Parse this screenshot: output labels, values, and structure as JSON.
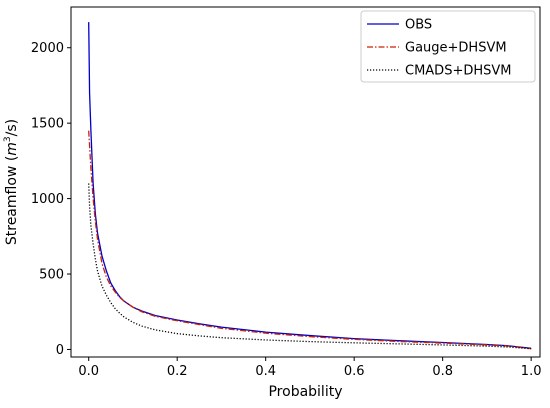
{
  "chart_data": {
    "type": "line",
    "title": "",
    "xlabel": "Probability",
    "ylabel": {
      "prefix": "Streamflow (",
      "unit_base": "m",
      "unit_exp": "3",
      "unit_rest": "/s)"
    },
    "xlim": [
      -0.04,
      1.02
    ],
    "ylim": [
      -50,
      2270
    ],
    "xticks": [
      0.0,
      0.2,
      0.4,
      0.6,
      0.8,
      1.0
    ],
    "xtick_labels": [
      "0.0",
      "0.2",
      "0.4",
      "0.6",
      "0.8",
      "1.0"
    ],
    "yticks": [
      0,
      500,
      1000,
      1500,
      2000
    ],
    "ytick_labels": [
      "0",
      "500",
      "1000",
      "1500",
      "2000"
    ],
    "grid": false,
    "legend_position": "top-right",
    "series": [
      {
        "name": "OBS",
        "color": "#0000cc",
        "dash": "solid",
        "x": [
          0.0,
          0.002,
          0.005,
          0.01,
          0.015,
          0.02,
          0.03,
          0.04,
          0.05,
          0.06,
          0.07,
          0.08,
          0.1,
          0.12,
          0.15,
          0.2,
          0.25,
          0.3,
          0.4,
          0.5,
          0.6,
          0.7,
          0.8,
          0.9,
          0.95,
          1.0
        ],
        "values": [
          2170,
          1700,
          1450,
          1100,
          900,
          770,
          620,
          520,
          440,
          390,
          350,
          320,
          280,
          255,
          225,
          195,
          170,
          148,
          115,
          92,
          72,
          58,
          46,
          33,
          24,
          8
        ]
      },
      {
        "name": "Gauge+DHSVM",
        "color": "#cc2200",
        "dash": "dashdot",
        "x": [
          0.0,
          0.002,
          0.005,
          0.01,
          0.015,
          0.02,
          0.03,
          0.04,
          0.05,
          0.06,
          0.07,
          0.08,
          0.1,
          0.12,
          0.15,
          0.2,
          0.25,
          0.3,
          0.4,
          0.5,
          0.6,
          0.7,
          0.8,
          0.9,
          0.95,
          1.0
        ],
        "values": [
          1450,
          1350,
          1200,
          1000,
          850,
          730,
          570,
          480,
          420,
          380,
          345,
          320,
          280,
          250,
          220,
          190,
          165,
          140,
          108,
          85,
          67,
          53,
          42,
          30,
          22,
          5
        ]
      },
      {
        "name": "CMADS+DHSVM",
        "color": "#000000",
        "dash": "dotted",
        "x": [
          0.0,
          0.002,
          0.005,
          0.01,
          0.015,
          0.02,
          0.03,
          0.04,
          0.05,
          0.06,
          0.07,
          0.08,
          0.1,
          0.12,
          0.15,
          0.2,
          0.25,
          0.3,
          0.4,
          0.5,
          0.6,
          0.7,
          0.8,
          0.9,
          0.95,
          1.0
        ],
        "values": [
          1100,
          950,
          820,
          700,
          600,
          520,
          420,
          360,
          310,
          270,
          240,
          215,
          180,
          155,
          130,
          105,
          90,
          78,
          63,
          52,
          44,
          37,
          30,
          22,
          16,
          5
        ]
      }
    ]
  }
}
